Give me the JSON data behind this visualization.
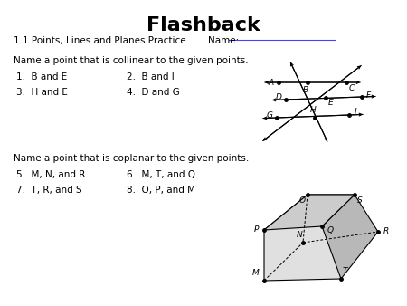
{
  "title": "Flashback",
  "subtitle": "1.1 Points, Lines and Planes Practice",
  "name_label": "Name:",
  "collinear_prompt": "Name a point that is collinear to the given points.",
  "collinear_items": [
    [
      "1.  B and E",
      "2.  B and I"
    ],
    [
      "3.  H and E",
      "4.  D and G"
    ]
  ],
  "coplanar_prompt": "Name a point that is coplanar to the given points.",
  "coplanar_items": [
    [
      "5.  M, N, and R",
      "6.  M, T, and Q"
    ],
    [
      "7.  T, R, and S",
      "8.  O, P, and M"
    ]
  ],
  "bg_color": "#ffffff",
  "text_color": "#000000",
  "title_fontsize": 16,
  "body_fontsize": 7.5,
  "label_fontsize": 6.5
}
